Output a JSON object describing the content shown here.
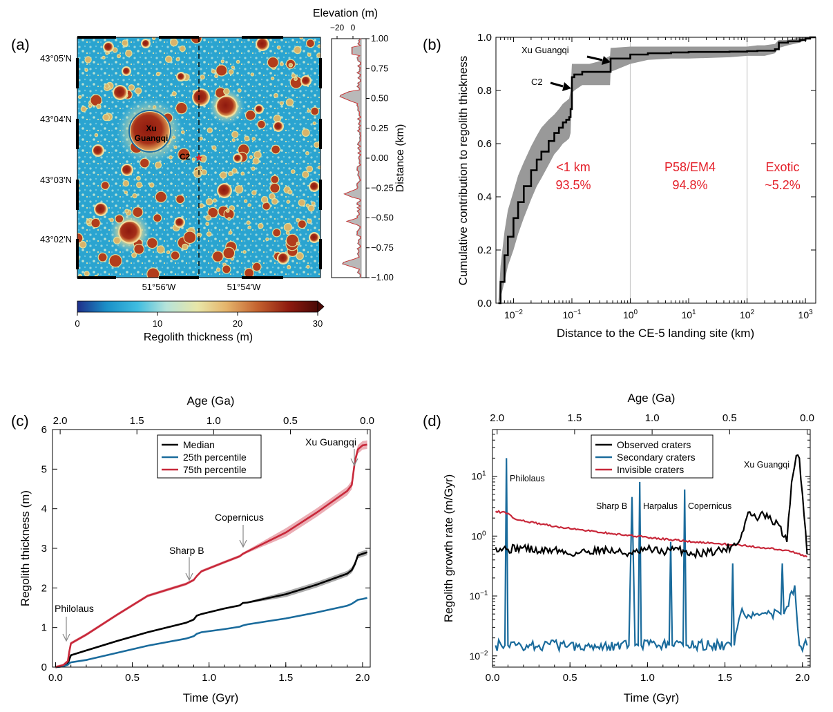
{
  "chart_data": [
    {
      "panel": "(a)",
      "type": "heatmap",
      "title": "",
      "yticks": [
        "43°05'N",
        "43°04'N",
        "43°03'N",
        "43°02'N"
      ],
      "xticks": [
        "51°56'W",
        "51°54'W"
      ],
      "crater_labels": [
        "Xu\nGuangqi",
        "C2"
      ],
      "xu_label_lines": [
        "Xu",
        "Guangqi"
      ],
      "c2_label": "C2",
      "colorbar": {
        "label": "Regolith thickness (m)",
        "ticks": [
          "0",
          "10",
          "20",
          "30"
        ],
        "range": [
          0,
          30
        ],
        "colors": [
          "#1f2f8a",
          "#1a8fc7",
          "#3fbde0",
          "#b6e3da",
          "#e8e6a8",
          "#e5b46b",
          "#c4622f",
          "#8e1a0f",
          "#4a0906"
        ]
      },
      "profile": {
        "top_label": "Elevation (m)",
        "top_ticks": [
          "−20",
          "0"
        ],
        "ylabel": "Distance (km)",
        "yticks": [
          "1.00",
          "0.75",
          "0.50",
          "0.25",
          "0.00",
          "−0.25",
          "−0.50",
          "−0.75",
          "−1.00"
        ],
        "ylim": [
          -1.0,
          1.0
        ]
      }
    },
    {
      "panel": "(b)",
      "type": "line",
      "xscale": "log",
      "xlabel": "Distance to the CE-5 landing site (km)",
      "ylabel": "Cumulative contribution to regolith thickness",
      "xlim": [
        0.005,
        1500
      ],
      "ylim": [
        0,
        1.0
      ],
      "xticks": [
        {
          "base": "10",
          "exp": "−2"
        },
        {
          "base": "10",
          "exp": "−1"
        },
        {
          "base": "10",
          "exp": "0"
        },
        {
          "base": "10",
          "exp": "1"
        },
        {
          "base": "10",
          "exp": "2"
        },
        {
          "base": "10",
          "exp": "3"
        }
      ],
      "yticks": [
        "0.0",
        "0.2",
        "0.4",
        "0.6",
        "0.8",
        "1.0"
      ],
      "vlines": [
        1,
        100
      ],
      "median": {
        "x": [
          0.0055,
          0.006,
          0.007,
          0.008,
          0.01,
          0.012,
          0.015,
          0.02,
          0.025,
          0.03,
          0.04,
          0.05,
          0.06,
          0.07,
          0.08,
          0.09,
          0.095,
          0.1,
          0.11,
          0.15,
          0.2,
          0.3,
          0.45,
          0.46,
          1,
          2,
          5,
          10,
          50,
          100,
          150,
          200,
          300,
          350,
          500,
          800,
          1000,
          1200,
          1500
        ],
        "y": [
          0.0,
          0.08,
          0.18,
          0.25,
          0.32,
          0.38,
          0.44,
          0.5,
          0.54,
          0.57,
          0.61,
          0.64,
          0.66,
          0.68,
          0.69,
          0.7,
          0.73,
          0.85,
          0.86,
          0.87,
          0.87,
          0.87,
          0.87,
          0.92,
          0.935,
          0.94,
          0.943,
          0.945,
          0.946,
          0.948,
          0.95,
          0.95,
          0.955,
          0.98,
          0.985,
          0.99,
          0.995,
          1.0,
          1.0
        ]
      },
      "band_upper": [
        0.0,
        0.14,
        0.27,
        0.35,
        0.42,
        0.48,
        0.53,
        0.59,
        0.63,
        0.66,
        0.69,
        0.71,
        0.73,
        0.75,
        0.76,
        0.77,
        0.8,
        0.9,
        0.9,
        0.9,
        0.9,
        0.91,
        0.93,
        0.96,
        0.965,
        0.965,
        0.965,
        0.965,
        0.965,
        0.965,
        0.97,
        0.97,
        0.975,
        0.99,
        0.99,
        1.0,
        1.0,
        1.0,
        1.0
      ],
      "band_lower": [
        0.0,
        0.02,
        0.08,
        0.14,
        0.2,
        0.26,
        0.32,
        0.39,
        0.44,
        0.47,
        0.52,
        0.56,
        0.58,
        0.6,
        0.61,
        0.62,
        0.64,
        0.79,
        0.8,
        0.82,
        0.82,
        0.82,
        0.82,
        0.87,
        0.9,
        0.915,
        0.92,
        0.92,
        0.925,
        0.93,
        0.93,
        0.93,
        0.94,
        0.96,
        0.97,
        0.98,
        0.99,
        0.995,
        1.0
      ],
      "annotations": [
        "Xu Guangqi",
        "C2"
      ],
      "regions": [
        {
          "name": "<1 km",
          "value": "93.5%"
        },
        {
          "name": "P58/EM4",
          "value": "94.8%"
        },
        {
          "name": "Exotic",
          "value": "~5.2%"
        }
      ]
    },
    {
      "panel": "(c)",
      "type": "line",
      "xlabel": "Time (Gyr)",
      "ylabel": "Regolith thickness (m)",
      "top_xlabel": "Age (Ga)",
      "xlim": [
        -0.02,
        2.05
      ],
      "ylim": [
        0,
        6
      ],
      "xticks": [
        "0.0",
        "0.5",
        "1.0",
        "1.5",
        "2.0"
      ],
      "top_xticks": [
        "2.0",
        "1.5",
        "1.0",
        "0.5",
        "0.0"
      ],
      "yticks": [
        "0",
        "1",
        "2",
        "3",
        "4",
        "5",
        "6"
      ],
      "series": [
        {
          "name": "Median",
          "color": "#000000",
          "x": [
            0.0,
            0.05,
            0.08,
            0.09,
            0.1,
            0.2,
            0.4,
            0.6,
            0.85,
            0.9,
            0.92,
            0.95,
            1.1,
            1.2,
            1.22,
            1.25,
            1.5,
            1.7,
            1.9,
            1.93,
            1.95,
            1.97,
            2.0,
            2.03
          ],
          "y": [
            0.0,
            0.02,
            0.08,
            0.2,
            0.3,
            0.42,
            0.66,
            0.88,
            1.12,
            1.2,
            1.3,
            1.34,
            1.48,
            1.56,
            1.62,
            1.63,
            1.84,
            2.08,
            2.36,
            2.45,
            2.6,
            2.82,
            2.86,
            2.9
          ]
        },
        {
          "name": "25th percentile",
          "color": "#1a6b9c",
          "x": [
            0.0,
            0.05,
            0.08,
            0.09,
            0.1,
            0.2,
            0.4,
            0.6,
            0.85,
            0.9,
            0.92,
            0.95,
            1.1,
            1.2,
            1.22,
            1.25,
            1.5,
            1.7,
            1.9,
            1.93,
            1.95,
            1.97,
            2.0,
            2.03
          ],
          "y": [
            0.0,
            0.02,
            0.06,
            0.1,
            0.12,
            0.18,
            0.36,
            0.54,
            0.72,
            0.78,
            0.84,
            0.88,
            0.96,
            1.02,
            1.05,
            1.08,
            1.23,
            1.38,
            1.55,
            1.6,
            1.65,
            1.7,
            1.72,
            1.75
          ]
        },
        {
          "name": "75th percentile",
          "color": "#c8283a",
          "x": [
            0.0,
            0.05,
            0.08,
            0.09,
            0.1,
            0.2,
            0.4,
            0.6,
            0.85,
            0.9,
            0.92,
            0.95,
            1.1,
            1.2,
            1.22,
            1.25,
            1.5,
            1.7,
            1.9,
            1.93,
            1.95,
            1.97,
            2.0,
            2.03
          ],
          "y": [
            0.0,
            0.05,
            0.15,
            0.4,
            0.6,
            0.82,
            1.32,
            1.8,
            2.1,
            2.2,
            2.3,
            2.42,
            2.65,
            2.8,
            2.86,
            2.92,
            3.4,
            3.9,
            4.45,
            4.6,
            5.2,
            5.5,
            5.6,
            5.62
          ]
        }
      ],
      "annotations": [
        {
          "label": "Philolaus",
          "x": 0.09
        },
        {
          "label": "Sharp B",
          "x": 0.87
        },
        {
          "label": "Copernicus",
          "x": 1.22
        },
        {
          "label": "Xu Guangqi",
          "x": 1.95
        }
      ]
    },
    {
      "panel": "(d)",
      "type": "line",
      "yscale": "log",
      "xlabel": "Time (Gyr)",
      "ylabel": "Regolith growth rate (m/Gyr)",
      "top_xlabel": "Age (Ga)",
      "xlim": [
        0,
        2.05
      ],
      "ylim": [
        0.0065,
        60
      ],
      "xticks": [
        "0.0",
        "0.5",
        "1.0",
        "1.5",
        "2.0"
      ],
      "top_xticks": [
        "2.0",
        "1.5",
        "1.0",
        "0.5",
        "0.0"
      ],
      "yticks": [
        {
          "base": "10",
          "exp": "−2"
        },
        {
          "base": "10",
          "exp": "−1"
        },
        {
          "base": "10",
          "exp": "0"
        },
        {
          "base": "10",
          "exp": "1"
        }
      ],
      "series": [
        {
          "name": "Observed craters",
          "color": "#000000",
          "x": [
            0.02,
            0.1,
            0.2,
            0.3,
            0.4,
            0.5,
            0.6,
            0.7,
            0.8,
            0.9,
            1.0,
            1.1,
            1.2,
            1.3,
            1.4,
            1.5,
            1.55,
            1.6,
            1.65,
            1.7,
            1.75,
            1.8,
            1.85,
            1.9,
            1.93,
            1.96,
            1.98,
            2.0,
            2.03
          ],
          "y": [
            0.65,
            0.6,
            0.65,
            0.55,
            0.6,
            0.5,
            0.55,
            0.6,
            0.55,
            0.5,
            0.6,
            0.55,
            0.6,
            0.5,
            0.55,
            0.6,
            0.7,
            0.9,
            2.5,
            2.0,
            2.3,
            1.8,
            1.5,
            0.8,
            8.0,
            22.0,
            20.0,
            5.0,
            0.5
          ]
        },
        {
          "name": "Secondary craters",
          "color": "#1a6b9c",
          "x": [
            0.02,
            0.08,
            0.09,
            0.1,
            0.3,
            0.6,
            0.88,
            0.9,
            0.92,
            0.94,
            0.95,
            0.96,
            1.14,
            1.15,
            1.16,
            1.23,
            1.24,
            1.25,
            1.5,
            1.54,
            1.55,
            1.56,
            1.6,
            1.7,
            1.8,
            1.86,
            1.87,
            1.88,
            1.95,
            1.98,
            2.03
          ],
          "y": [
            0.015,
            0.015,
            20.0,
            0.015,
            0.015,
            0.015,
            0.015,
            4.5,
            0.015,
            0.015,
            8.0,
            0.015,
            0.015,
            0.8,
            0.015,
            0.015,
            6.0,
            0.015,
            0.015,
            0.015,
            0.35,
            0.015,
            0.05,
            0.05,
            0.05,
            0.05,
            0.35,
            0.05,
            0.15,
            0.015,
            0.015
          ]
        },
        {
          "name": "Invisible craters",
          "color": "#c8283a",
          "x": [
            0.02,
            0.1,
            0.15,
            0.4,
            0.7,
            1.0,
            1.3,
            1.6,
            1.9,
            2.03
          ],
          "y": [
            2.6,
            2.4,
            1.9,
            1.45,
            1.15,
            0.95,
            0.8,
            0.7,
            0.58,
            0.45
          ]
        }
      ],
      "annotations": [
        "Philolaus",
        "Sharp B",
        "Harpalus",
        "Copernicus",
        "Xu Guangqi"
      ]
    }
  ],
  "panels": {
    "a": {
      "label": "(a)",
      "ytick_0": "43°05'N",
      "ytick_1": "43°04'N",
      "ytick_2": "43°03'N",
      "ytick_3": "43°02'N",
      "xtick_0": "51°56'W",
      "xtick_1": "51°54'W",
      "cb_label": "Regolith thickness (m)",
      "cb_tick_0": "0",
      "cb_tick_1": "10",
      "cb_tick_2": "20",
      "cb_tick_3": "30",
      "prof_title": "Elevation (m)",
      "prof_tick_0": "−20",
      "prof_tick_1": "0",
      "prof_ylabel": "Distance (km)",
      "prof_y_0": "1.00",
      "prof_y_1": "0.75",
      "prof_y_2": "0.50",
      "prof_y_3": "0.25",
      "prof_y_4": "0.00",
      "prof_y_5": "−0.25",
      "prof_y_6": "−0.50",
      "prof_y_7": "−0.75",
      "prof_y_8": "−1.00"
    },
    "b": {
      "label": "(b)",
      "xlabel": "Distance to the CE-5 landing site (km)",
      "ylabel": "Cumulative contribution to regolith thickness",
      "ytick_0": "0.0",
      "ytick_1": "0.2",
      "ytick_2": "0.4",
      "ytick_3": "0.6",
      "ytick_4": "0.8",
      "ytick_5": "1.0",
      "ann_xu": "Xu Guangqi",
      "ann_c2": "C2",
      "r1_name": "<1 km",
      "r1_val": "93.5%",
      "r2_name": "P58/EM4",
      "r2_val": "94.8%",
      "r3_name": "Exotic",
      "r3_val": "~5.2%"
    },
    "c": {
      "label": "(c)",
      "top_label": "Age (Ga)",
      "xlabel": "Time (Gyr)",
      "ylabel": "Regolith thickness (m)",
      "legend_0": "Median",
      "legend_1": "25th percentile",
      "legend_2": "75th percentile",
      "ann_0": "Philolaus",
      "ann_1": "Sharp B",
      "ann_2": "Copernicus",
      "ann_3": "Xu Guangqi"
    },
    "d": {
      "label": "(d)",
      "top_label": "Age (Ga)",
      "xlabel": "Time (Gyr)",
      "ylabel": "Regolith growth rate (m/Gyr)",
      "legend_0": "Observed craters",
      "legend_1": "Secondary craters",
      "legend_2": "Invisible craters",
      "ann_0": "Philolaus",
      "ann_1": "Sharp B",
      "ann_2": "Harpalus",
      "ann_3": "Copernicus",
      "ann_4": "Xu Guangqi"
    }
  }
}
